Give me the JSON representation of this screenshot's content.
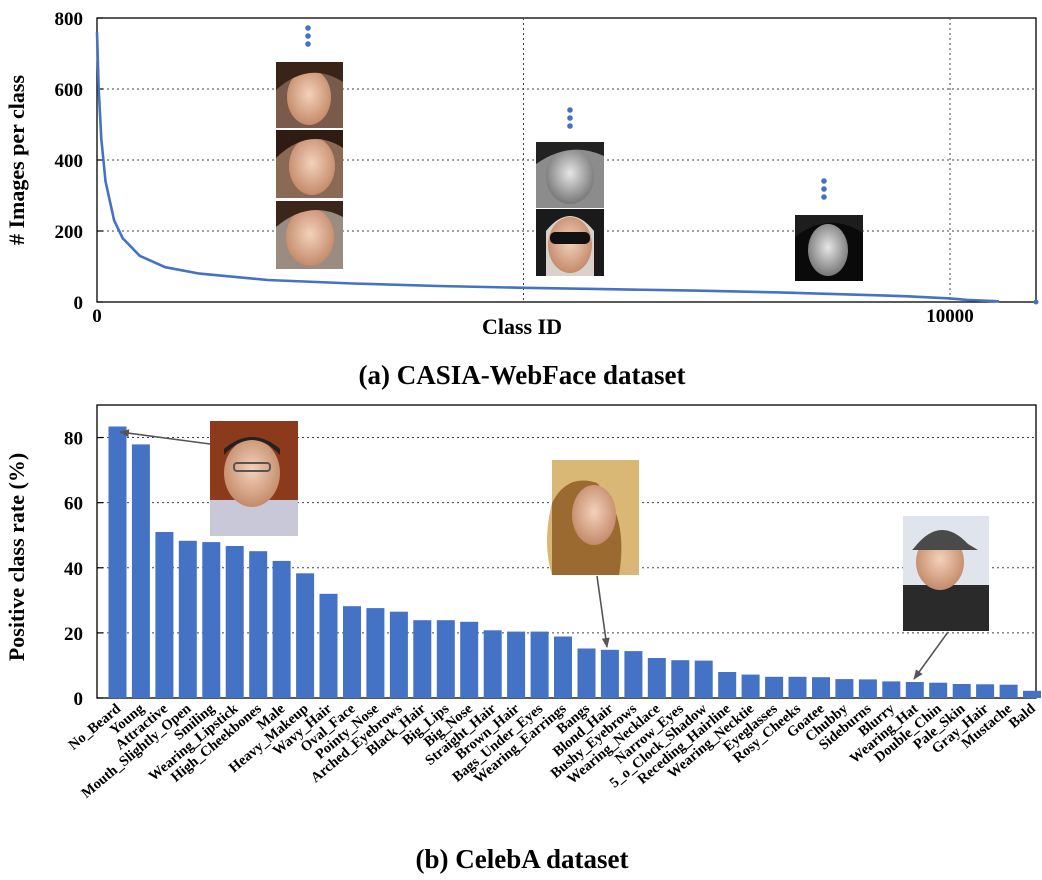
{
  "chart_data": [
    {
      "type": "line",
      "title": "",
      "caption": "(a) CASIA-WebFace dataset",
      "xlabel": "Class ID",
      "ylabel": "# Images per class",
      "xlim": [
        0,
        10600
      ],
      "ylim": [
        0,
        800
      ],
      "xticks": [
        0,
        10000
      ],
      "yticks": [
        0,
        200,
        400,
        600,
        800
      ],
      "grid": true,
      "series": [
        {
          "name": "images per class",
          "color": "#4472c4",
          "x": [
            0,
            20,
            50,
            100,
            200,
            300,
            500,
            800,
            1200,
            2000,
            3000,
            4000,
            5000,
            6000,
            7000,
            8000,
            9000,
            9500,
            10000,
            10200,
            10575
          ],
          "y": [
            760,
            600,
            460,
            340,
            230,
            180,
            130,
            98,
            80,
            62,
            52,
            45,
            40,
            36,
            32,
            27,
            20,
            16,
            10,
            6,
            2
          ]
        }
      ],
      "annotations": [
        "⋮",
        "⋮",
        "⋮"
      ]
    },
    {
      "type": "bar",
      "title": "",
      "caption": "(b) CelebA dataset",
      "xlabel": "",
      "ylabel": "Positive class rate (%)",
      "ylim": [
        0,
        90
      ],
      "yticks": [
        0,
        20,
        40,
        60,
        80
      ],
      "grid": true,
      "color": "#4472c4",
      "categories": [
        "No_Beard",
        "Young",
        "Attractive",
        "Mouth_Slightly_Open",
        "Smiling",
        "Wearing_Lipstick",
        "High_Cheekbones",
        "Male",
        "Heavy_Makeup",
        "Wavy_Hair",
        "Oval_Face",
        "Pointy_Nose",
        "Arched_Eyebrows",
        "Black_Hair",
        "Big_Lips",
        "Big_Nose",
        "Straight_Hair",
        "Brown_Hair",
        "Bags_Under_Eyes",
        "Wearing_Earrings",
        "Bangs",
        "Blond_Hair",
        "Bushy_Eyebrows",
        "Wearing_Necklace",
        "Narrow_Eyes",
        "5_o_Clock_Shadow",
        "Receding_Hairline",
        "Wearing_Necktie",
        "Eyeglasses",
        "Rosy_Cheeks",
        "Goatee",
        "Chubby",
        "Sideburns",
        "Blurry",
        "Wearing_Hat",
        "Double_Chin",
        "Pale_Skin",
        "Gray_Hair",
        "Mustache",
        "Bald"
      ],
      "values": [
        83.4,
        77.9,
        51.0,
        48.3,
        47.9,
        46.7,
        45.1,
        42.1,
        38.3,
        32.0,
        28.2,
        27.6,
        26.5,
        23.9,
        23.9,
        23.4,
        20.8,
        20.4,
        20.4,
        18.9,
        15.2,
        14.8,
        14.4,
        12.3,
        11.6,
        11.5,
        8.0,
        7.2,
        6.5,
        6.5,
        6.4,
        5.8,
        5.7,
        5.1,
        4.9,
        4.7,
        4.3,
        4.2,
        4.1,
        2.2
      ]
    }
  ]
}
